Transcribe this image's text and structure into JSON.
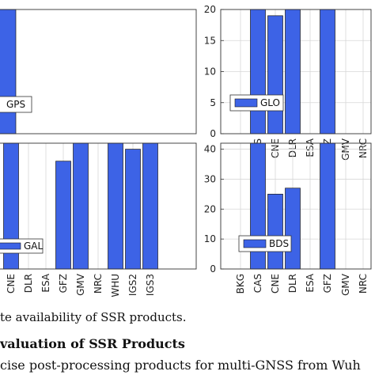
{
  "chart_data": [
    {
      "type": "bar",
      "legend": "GPS",
      "legend_position": "bottom-left",
      "visible_categories": [],
      "values": [
        20
      ],
      "ylim": [
        0,
        20
      ],
      "yticks": [],
      "grid": true
    },
    {
      "type": "bar",
      "legend": "GLO",
      "legend_position": "bottom-left",
      "visible_categories": [
        "",
        "CAS",
        "CNE",
        "DLR",
        "ESA",
        "GFZ",
        "GMV",
        "NRC"
      ],
      "values": [
        0,
        20,
        19,
        20,
        0,
        20,
        0,
        0
      ],
      "ylim": [
        0,
        20
      ],
      "yticks": [
        "0",
        "5",
        "10",
        "15",
        "20"
      ],
      "grid": true
    },
    {
      "type": "bar",
      "legend": "GAL",
      "legend_position": "bottom-left",
      "visible_categories": [
        "CNE",
        "DLR",
        "ESA",
        "GFZ",
        "GMV",
        "NRC",
        "WHU",
        "IGS2",
        "IGS3"
      ],
      "values": [
        42,
        0,
        0,
        36,
        42,
        0,
        42,
        40,
        42
      ],
      "ylim": [
        0,
        42
      ],
      "yticks": [],
      "grid": true
    },
    {
      "type": "bar",
      "legend": "BDS",
      "legend_position": "bottom-left",
      "visible_categories": [
        "BKG",
        "CAS",
        "CNE",
        "DLR",
        "ESA",
        "GFZ",
        "GMV",
        "NRC"
      ],
      "values": [
        0,
        42,
        25,
        27,
        0,
        42,
        0,
        0
      ],
      "ylim": [
        0,
        42
      ],
      "yticks": [
        "0",
        "10",
        "20",
        "30",
        "40"
      ],
      "grid": true
    }
  ],
  "colors": {
    "bar": "#3d63e6",
    "bar_edge": "#1a1a1a",
    "grid": "#d7d7d7"
  },
  "text": {
    "caption_line": "te availability of SSR products.",
    "section_heading": "valuation of SSR Products",
    "body_line": "cise post-processing products for multi-GNSS from Wuh"
  }
}
